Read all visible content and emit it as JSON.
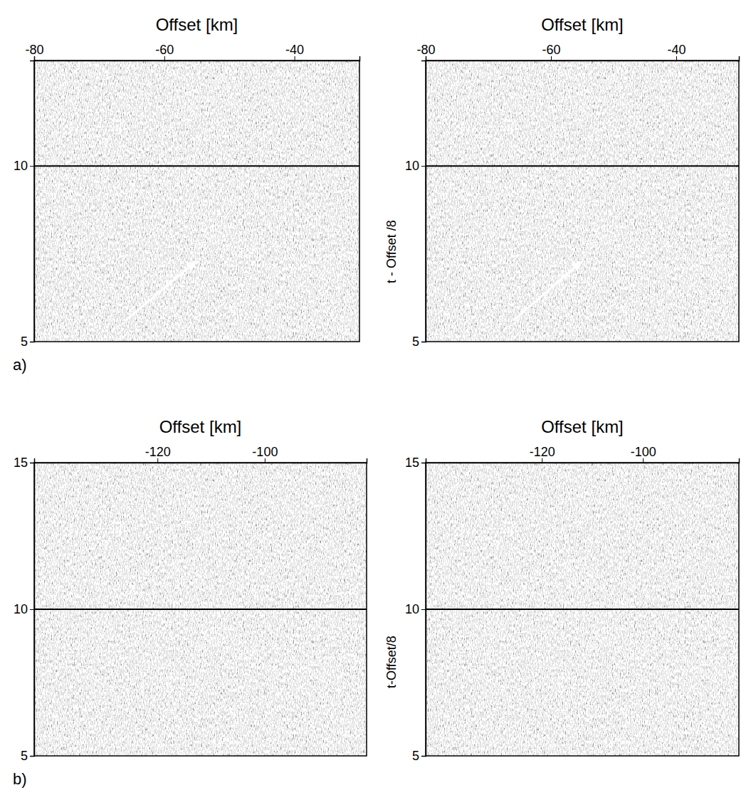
{
  "chart_data": [
    {
      "type": "image",
      "panel_label": "a)",
      "x_label": "Offset [km]",
      "xlim": [
        -80,
        -30
      ],
      "xticks": [
        -80,
        -60,
        -40
      ],
      "ylim": [
        5,
        13
      ],
      "yticks": [
        5,
        10
      ],
      "reference_line": 10,
      "arrow": {
        "from": [
          -66,
          5.6
        ],
        "to": [
          -55,
          7.3
        ]
      }
    },
    {
      "type": "image",
      "x_label": "Offset [km]",
      "y_label": "t - Offset /8",
      "xlim": [
        -80,
        -30
      ],
      "xticks": [
        -80,
        -60,
        -40
      ],
      "ylim": [
        5,
        13
      ],
      "yticks": [
        5,
        10
      ],
      "reference_line": 10,
      "arrow": {
        "from": [
          -66,
          5.6
        ],
        "to": [
          -55,
          7.3
        ]
      }
    },
    {
      "type": "image",
      "panel_label": "b)",
      "x_label": "Offset [km]",
      "xlim": [
        -143,
        -81
      ],
      "xticks": [
        -120,
        -100
      ],
      "ylim": [
        5,
        15
      ],
      "yticks": [
        5,
        10,
        15
      ],
      "reference_line": 10
    },
    {
      "type": "image",
      "x_label": "Offset [km]",
      "y_label": "t-Offset/8",
      "xlim": [
        -143,
        -81
      ],
      "xticks": [
        -120,
        -100
      ],
      "ylim": [
        5,
        15
      ],
      "yticks": [
        5,
        10,
        15
      ],
      "reference_line": 10
    }
  ]
}
